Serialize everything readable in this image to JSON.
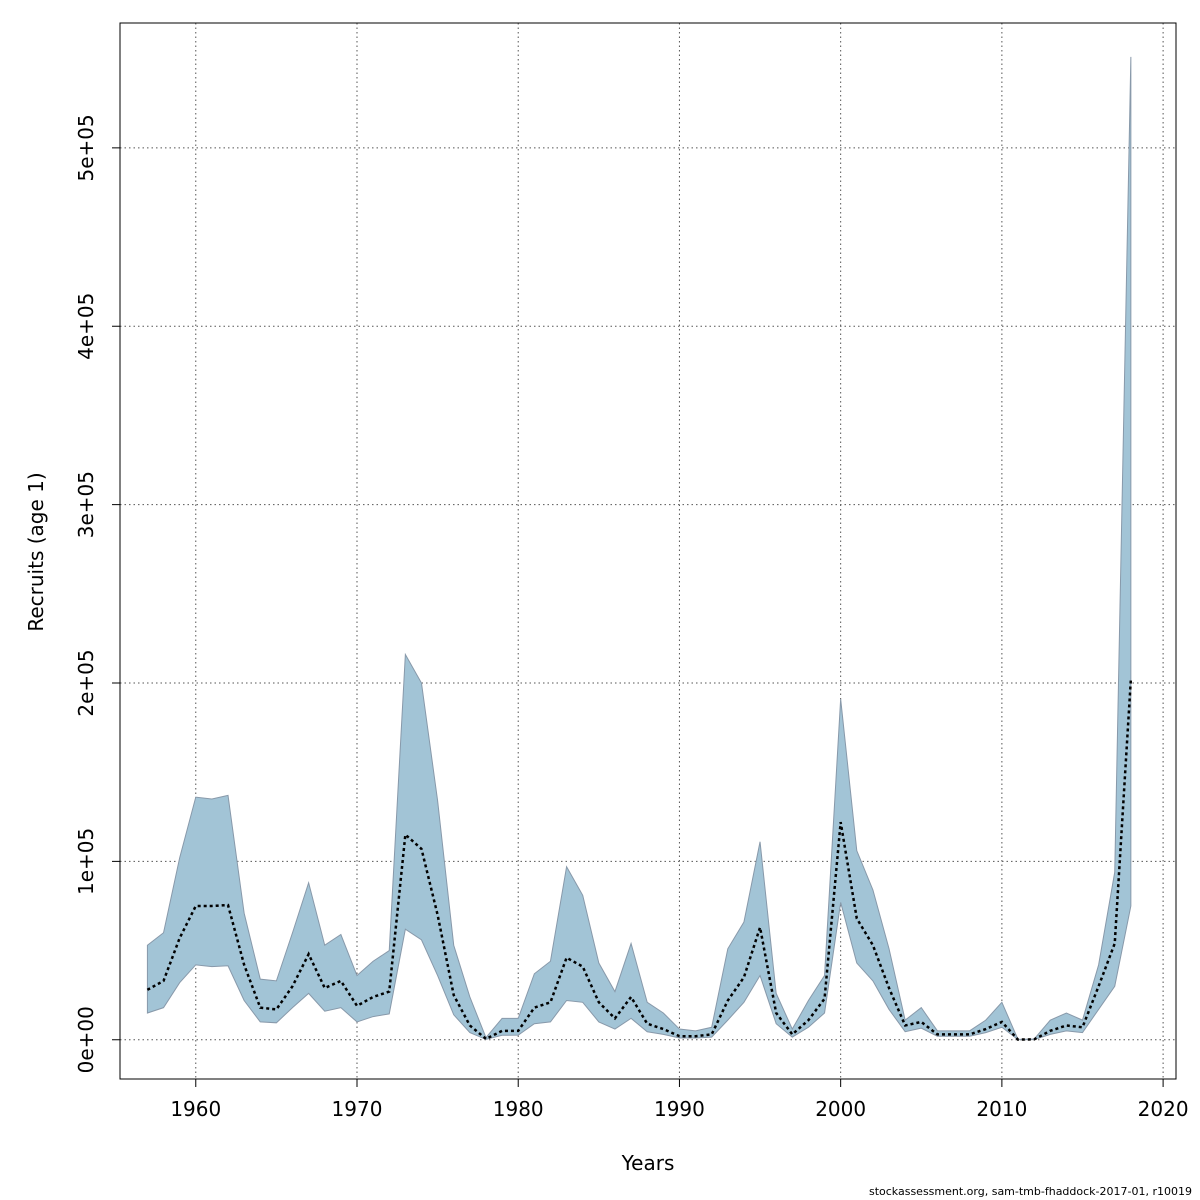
{
  "chart_data": {
    "type": "area",
    "xlabel": "Years",
    "ylabel": "Recruits (age 1)",
    "xlim": [
      1955.3,
      2020.8
    ],
    "ylim": [
      -22000,
      570000
    ],
    "x_ticks": [
      1960,
      1970,
      1980,
      1990,
      2000,
      2010,
      2020
    ],
    "x_tick_labels": [
      "1960",
      "1970",
      "1980",
      "1990",
      "2000",
      "2010",
      "2020"
    ],
    "y_ticks": [
      0,
      100000,
      200000,
      300000,
      400000,
      500000
    ],
    "y_tick_labels": [
      "0e+00",
      "1e+05",
      "2e+05",
      "3e+05",
      "4e+05",
      "5e+05"
    ],
    "grid": true,
    "band_color": "#a2c4d6",
    "band_edge_color": "#8899aa",
    "line_color": "#000000",
    "line_style": "dotted",
    "x": [
      1957,
      1958,
      1959,
      1960,
      1961,
      1962,
      1963,
      1964,
      1965,
      1966,
      1967,
      1968,
      1969,
      1970,
      1971,
      1972,
      1973,
      1974,
      1975,
      1976,
      1977,
      1978,
      1979,
      1980,
      1981,
      1982,
      1983,
      1984,
      1985,
      1986,
      1987,
      1988,
      1989,
      1990,
      1991,
      1992,
      1993,
      1994,
      1995,
      1996,
      1997,
      1998,
      1999,
      2000,
      2001,
      2002,
      2003,
      2004,
      2005,
      2006,
      2007,
      2008,
      2009,
      2010,
      2011,
      2012,
      2013,
      2014,
      2015,
      2016,
      2017,
      2018
    ],
    "series": [
      {
        "role": "estimate",
        "values": [
          28000,
          33000,
          57000,
          75000,
          75000,
          75500,
          42000,
          18000,
          17000,
          30000,
          48000,
          29000,
          33000,
          19000,
          24000,
          27000,
          115000,
          107000,
          70000,
          25000,
          8000,
          500,
          5000,
          5000,
          18000,
          21000,
          46000,
          41000,
          21000,
          12000,
          24000,
          9000,
          6000,
          2000,
          2000,
          3000,
          22000,
          35000,
          63000,
          15000,
          3000,
          11000,
          23000,
          122000,
          68000,
          53000,
          29000,
          8000,
          10000,
          3000,
          3000,
          3000,
          6000,
          10000,
          100,
          200,
          5000,
          8000,
          7000,
          30000,
          54000,
          202000
        ]
      },
      {
        "role": "lower",
        "values": [
          15000,
          18000,
          32000,
          42000,
          41000,
          41500,
          22000,
          10000,
          9500,
          18000,
          26000,
          16000,
          18000,
          10000,
          13000,
          14500,
          62000,
          56000,
          36000,
          14000,
          4000,
          200,
          2500,
          2600,
          9000,
          10000,
          22000,
          21000,
          10000,
          6000,
          12000,
          4500,
          3000,
          1000,
          1000,
          1500,
          11000,
          21000,
          36000,
          9000,
          1500,
          7000,
          15000,
          77000,
          43000,
          33000,
          17000,
          4500,
          6500,
          2000,
          2000,
          2000,
          4000,
          7000,
          50,
          100,
          3000,
          5000,
          4000,
          17000,
          30000,
          75000
        ]
      },
      {
        "role": "upper",
        "values": [
          53000,
          60000,
          102000,
          136000,
          135000,
          137000,
          71000,
          34000,
          33000,
          60000,
          88000,
          53000,
          59000,
          36000,
          44000,
          50000,
          216000,
          200000,
          134000,
          53000,
          24000,
          1200,
          12000,
          12000,
          37000,
          44000,
          97000,
          81000,
          43000,
          27000,
          54000,
          21000,
          15000,
          6000,
          5000,
          7000,
          51000,
          66000,
          111000,
          26000,
          6000,
          22000,
          36000,
          191000,
          106000,
          84000,
          51000,
          11000,
          18000,
          5000,
          5000,
          5000,
          11000,
          21000,
          200,
          400,
          11000,
          15000,
          11000,
          42000,
          94000,
          551000
        ]
      }
    ]
  },
  "source_note": "stockassessment.org, sam-tmb-fhaddock-2017-01, r10019"
}
